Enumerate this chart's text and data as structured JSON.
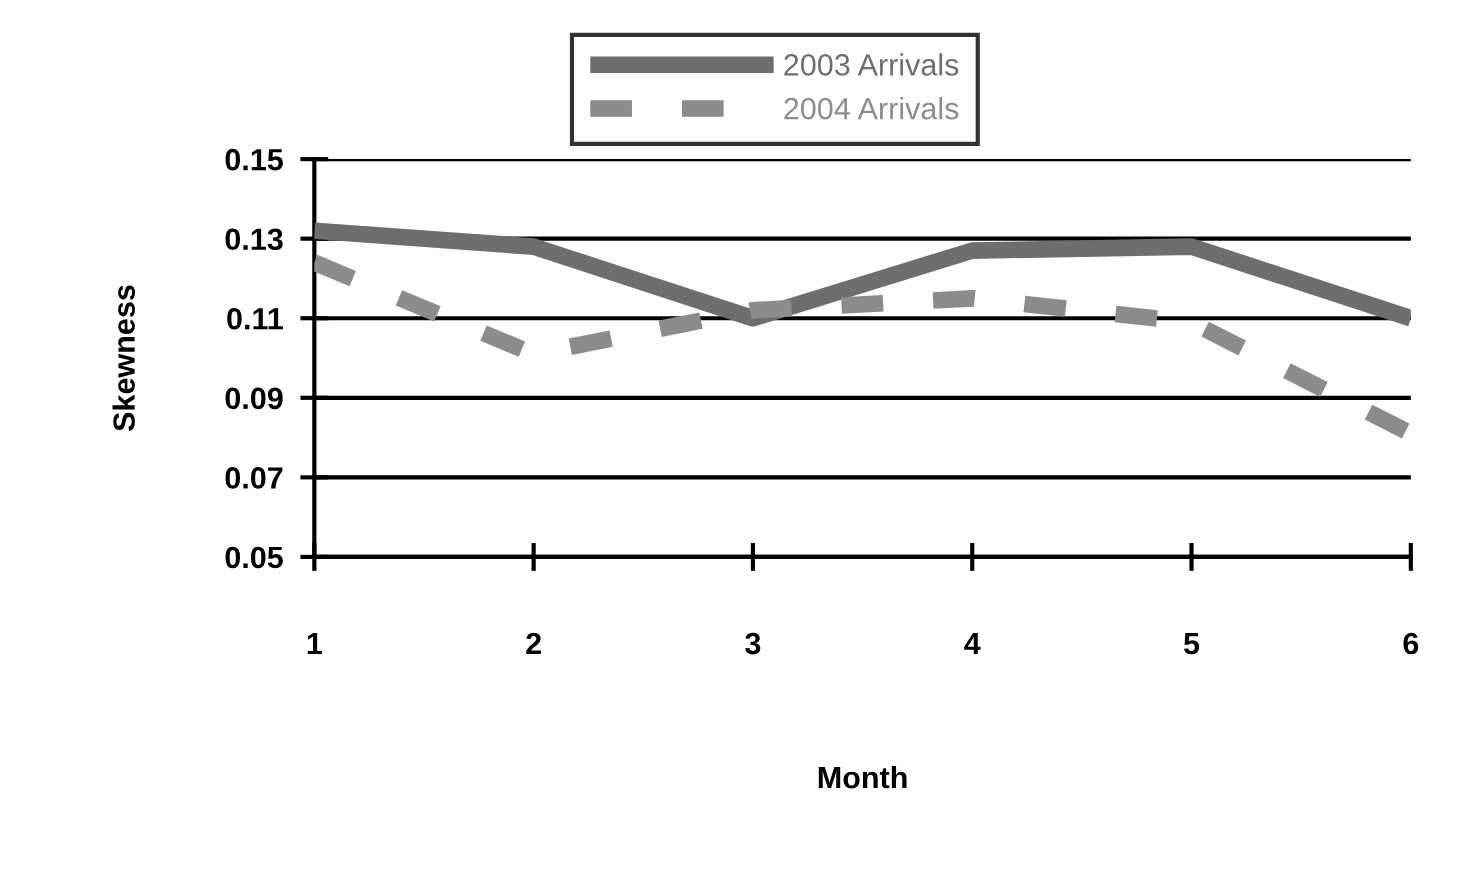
{
  "chart_data": {
    "type": "line",
    "xlabel": "Month",
    "ylabel": "Skewness",
    "x": [
      1,
      2,
      3,
      4,
      5,
      6
    ],
    "series": [
      {
        "name": "2003 Arrivals",
        "color": "#6e6e6e",
        "line_style": "solid",
        "values": [
          0.132,
          0.128,
          0.11,
          0.127,
          0.128,
          0.11
        ]
      },
      {
        "name": "2004 Arrivals",
        "color": "#8c8c8c",
        "line_style": "dashed",
        "values": [
          0.124,
          0.101,
          0.112,
          0.115,
          0.109,
          0.081
        ]
      }
    ],
    "xlim": [
      1,
      6
    ],
    "xticks": [
      1,
      2,
      3,
      4,
      5,
      6
    ],
    "ylim": [
      0.05,
      0.15
    ],
    "yticks": [
      {
        "value": 0.05,
        "label": "0.05"
      },
      {
        "value": 0.07,
        "label": "0.07"
      },
      {
        "value": 0.09,
        "label": "0.09"
      },
      {
        "value": 0.11,
        "label": "0.11"
      },
      {
        "value": 0.13,
        "label": "0.13"
      },
      {
        "value": 0.15,
        "label": "0.15"
      }
    ],
    "grid": "y",
    "legend": "top",
    "marker": "none"
  }
}
